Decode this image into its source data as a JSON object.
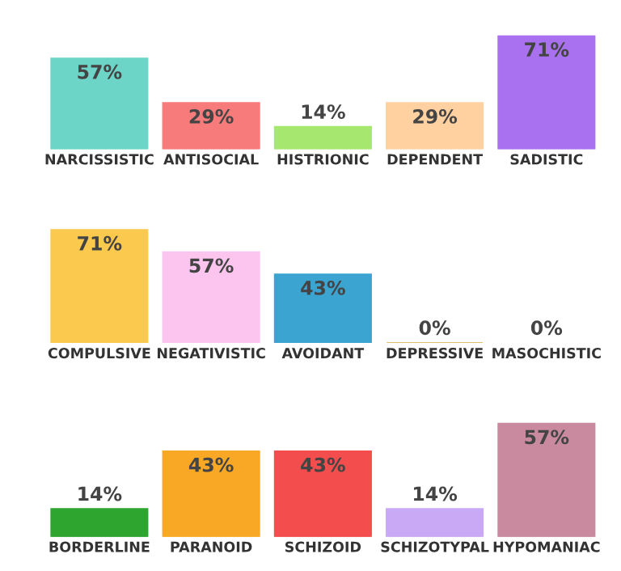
{
  "chart_data": [
    {
      "type": "bar",
      "categories": [
        "NARCISSISTIC",
        "ANTISOCIAL",
        "HISTRIONIC",
        "DEPENDENT",
        "SADISTIC"
      ],
      "values": [
        57,
        29,
        14,
        29,
        71
      ],
      "value_labels": [
        "57%",
        "29%",
        "14%",
        "29%",
        "71%"
      ],
      "colors": [
        "#6dd5c8",
        "#f77b7b",
        "#a6e86f",
        "#ffd0a0",
        "#a971f0"
      ],
      "tick_labels": "x",
      "grid": false,
      "legend": false
    },
    {
      "type": "bar",
      "categories": [
        "COMPULSIVE",
        "NEGATIVISTIC",
        "AVOIDANT",
        "DEPRESSIVE",
        "MASOCHISTIC"
      ],
      "values": [
        71,
        57,
        43,
        0,
        0
      ],
      "value_labels": [
        "71%",
        "57%",
        "43%",
        "0%",
        "0%"
      ],
      "colors": [
        "#fcc94f",
        "#fbc5ef",
        "#3ba4d1",
        "#e0c070",
        "#ffffff"
      ],
      "tick_labels": "x",
      "grid": false,
      "legend": false
    },
    {
      "type": "bar",
      "categories": [
        "BORDERLINE",
        "PARANOID",
        "SCHIZOID",
        "SCHIZOTYPAL",
        "HYPOMANIAC"
      ],
      "values": [
        14,
        43,
        43,
        14,
        57
      ],
      "value_labels": [
        "14%",
        "43%",
        "43%",
        "14%",
        "57%"
      ],
      "colors": [
        "#2ea52e",
        "#f9a825",
        "#f34d4d",
        "#c9a8f5",
        "#c98aa0"
      ],
      "tick_labels": "x",
      "grid": false,
      "legend": false
    }
  ]
}
